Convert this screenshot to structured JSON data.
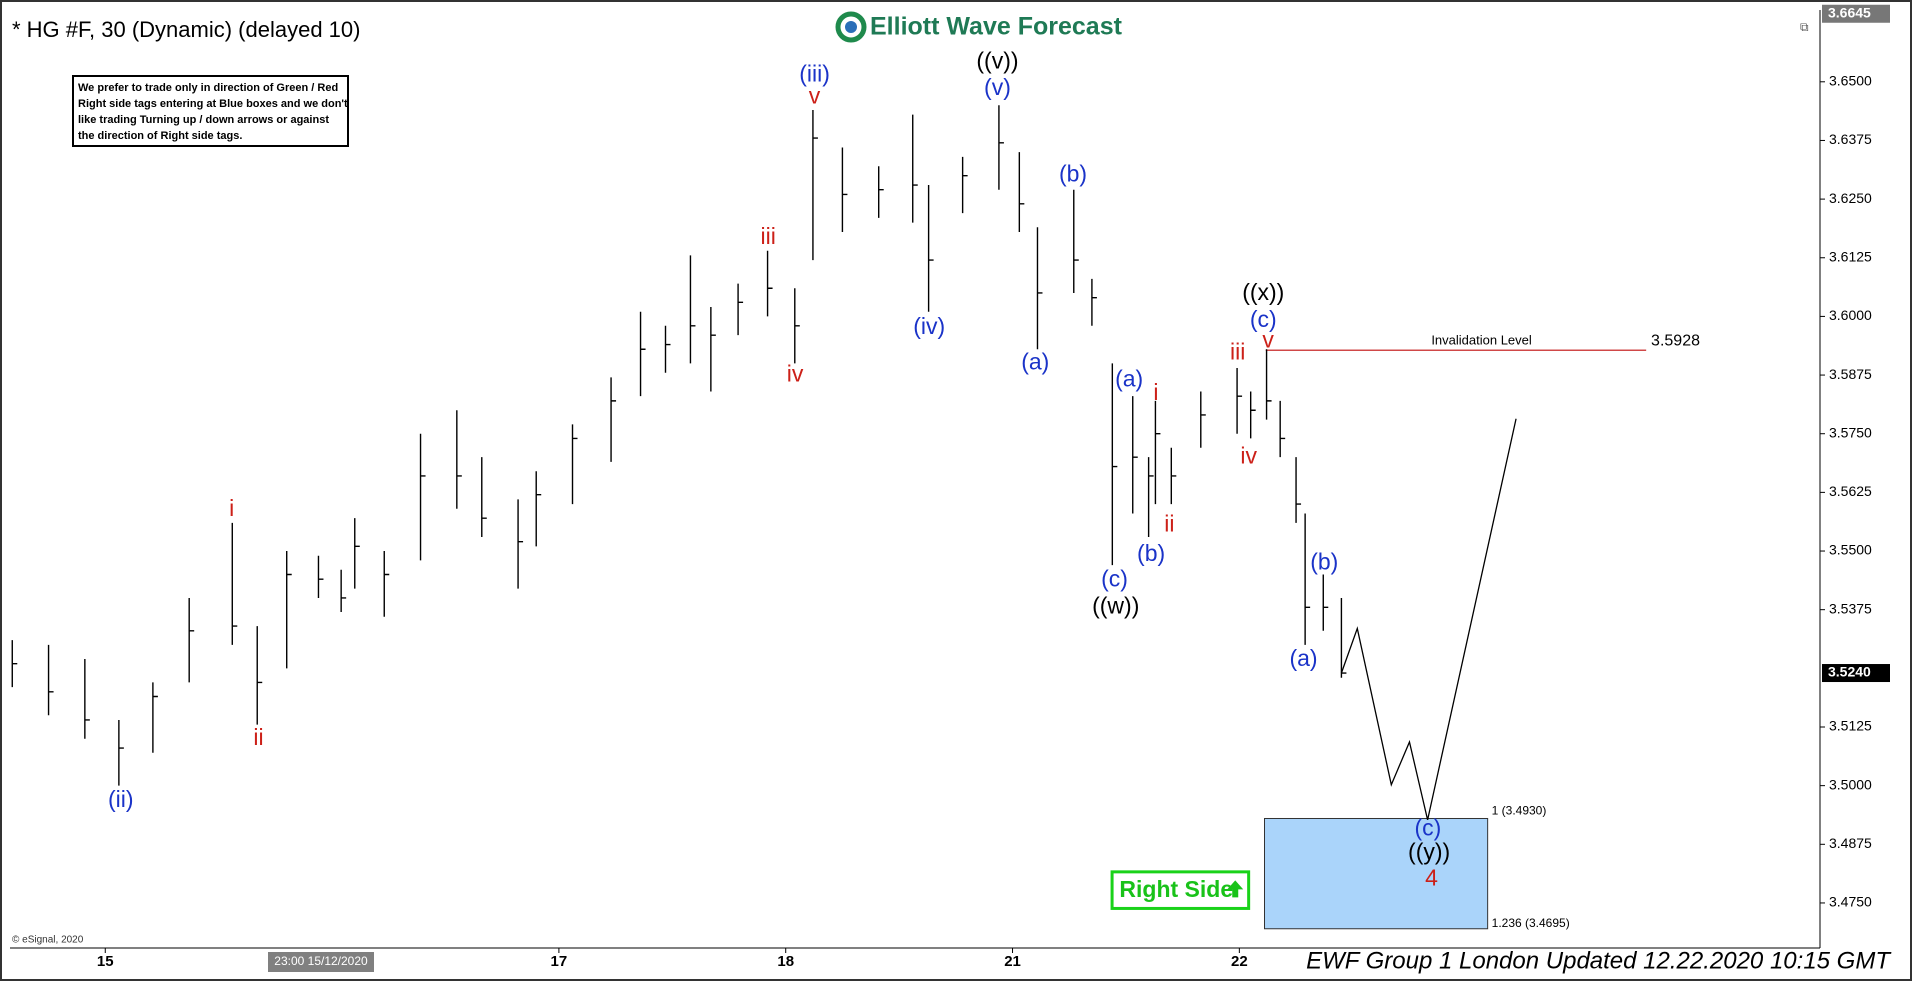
{
  "chart_data": {
    "type": "ohlc",
    "title": "* HG #F, 30 (Dynamic) (delayed 10)",
    "logo": "Elliott Wave Forecast",
    "note": [
      "We prefer to trade only in direction of Green / Red",
      "Right side tags entering at Blue boxes and we don't",
      "like trading Turning up / down arrows or against",
      "the direction of Right side tags."
    ],
    "color": "#000000",
    "x": [
      -0.41,
      -0.25,
      -0.09,
      0.06,
      0.21,
      0.37,
      0.56,
      0.67,
      0.8,
      0.94,
      1.04,
      1.1,
      1.23,
      1.39,
      1.55,
      1.66,
      1.82,
      1.9,
      2.06,
      2.23,
      2.36,
      2.47,
      2.58,
      2.67,
      2.79,
      2.92,
      3.04,
      3.12,
      3.25,
      3.41,
      3.56,
      3.63,
      3.78,
      3.94,
      4.03,
      4.11,
      4.27,
      4.35,
      4.44,
      4.53,
      4.6,
      4.63,
      4.7,
      4.83,
      4.99,
      5.05,
      5.12,
      5.18,
      5.25,
      5.29,
      5.37,
      5.45
    ],
    "high": [
      3.531,
      3.53,
      3.527,
      3.514,
      3.522,
      3.54,
      3.556,
      3.534,
      3.55,
      3.549,
      3.546,
      3.557,
      3.55,
      3.575,
      3.58,
      3.57,
      3.561,
      3.567,
      3.577,
      3.587,
      3.601,
      3.598,
      3.613,
      3.602,
      3.607,
      3.614,
      3.606,
      3.644,
      3.636,
      3.632,
      3.643,
      3.628,
      3.634,
      3.645,
      3.635,
      3.619,
      3.627,
      3.608,
      3.59,
      3.583,
      3.57,
      3.582,
      3.572,
      3.584,
      3.589,
      3.584,
      3.593,
      3.582,
      3.57,
      3.558,
      3.545,
      3.54
    ],
    "low": [
      3.521,
      3.515,
      3.51,
      3.5,
      3.507,
      3.522,
      3.53,
      3.513,
      3.525,
      3.54,
      3.537,
      3.542,
      3.536,
      3.548,
      3.559,
      3.553,
      3.542,
      3.551,
      3.56,
      3.569,
      3.583,
      3.588,
      3.59,
      3.584,
      3.596,
      3.6,
      3.59,
      3.612,
      3.618,
      3.621,
      3.62,
      3.601,
      3.622,
      3.627,
      3.618,
      3.593,
      3.605,
      3.598,
      3.547,
      3.558,
      3.553,
      3.56,
      3.56,
      3.572,
      3.575,
      3.574,
      3.578,
      3.57,
      3.556,
      3.53,
      3.533,
      3.523
    ],
    "close": [
      3.526,
      3.52,
      3.514,
      3.508,
      3.519,
      3.533,
      3.534,
      3.522,
      3.545,
      3.544,
      3.54,
      3.551,
      3.545,
      3.566,
      3.566,
      3.557,
      3.552,
      3.562,
      3.574,
      3.582,
      3.593,
      3.594,
      3.598,
      3.596,
      3.603,
      3.606,
      3.598,
      3.638,
      3.626,
      3.627,
      3.628,
      3.612,
      3.63,
      3.637,
      3.624,
      3.605,
      3.612,
      3.604,
      3.568,
      3.57,
      3.566,
      3.575,
      3.566,
      3.579,
      3.583,
      3.58,
      3.582,
      3.574,
      3.56,
      3.538,
      3.538,
      3.524
    ],
    "projection": {
      "x": [
        5.45,
        5.52,
        5.67,
        5.75,
        5.83,
        6.22
      ],
      "values": [
        3.524,
        3.5335,
        3.5002,
        3.5093,
        3.4927,
        3.5782
      ],
      "color": "#000000"
    },
    "xlim": [
      -0.42,
      7.56
    ],
    "xticks": [
      {
        "value": 0,
        "label": "15"
      },
      {
        "value": 2,
        "label": "17"
      },
      {
        "value": 3,
        "label": "18"
      },
      {
        "value": 4,
        "label": "21"
      },
      {
        "value": 5,
        "label": "22"
      }
    ],
    "time_tag": "23:00 15/12/2020",
    "ylim": [
      3.4654,
      3.6653
    ],
    "yticks": [
      {
        "value": 3.65,
        "label": "3.6500"
      },
      {
        "value": 3.6375,
        "label": "3.6375"
      },
      {
        "value": 3.625,
        "label": "3.6250"
      },
      {
        "value": 3.6125,
        "label": "3.6125"
      },
      {
        "value": 3.6,
        "label": "3.6000"
      },
      {
        "value": 3.5875,
        "label": "3.5875"
      },
      {
        "value": 3.575,
        "label": "3.5750"
      },
      {
        "value": 3.5625,
        "label": "3.5625"
      },
      {
        "value": 3.55,
        "label": "3.5500"
      },
      {
        "value": 3.5375,
        "label": "3.5375"
      },
      {
        "value": 3.5125,
        "label": "3.5125"
      },
      {
        "value": 3.5,
        "label": "3.5000"
      },
      {
        "value": 3.4875,
        "label": "3.4875"
      },
      {
        "value": 3.475,
        "label": "3.4750"
      }
    ],
    "last_price": {
      "value": 3.524,
      "label": "3.5240"
    },
    "high_price": {
      "value": 3.6645,
      "label": "3.6645"
    },
    "invalidation": {
      "label": "Invalidation Level",
      "value": 3.5928,
      "value_label": "3.5928",
      "color": "#d04848"
    },
    "target_box": {
      "upper": 3.493,
      "lower": 3.4695,
      "upper_label": "1 (3.4930)",
      "lower_label": "1.236 (3.4695)",
      "color": "#aad4fa"
    },
    "right_side": "Right Side",
    "wave_labels": [
      {
        "text": "(ii)",
        "color": "#1a33c8"
      },
      {
        "text": "i",
        "color": "#cc2018"
      },
      {
        "text": "ii",
        "color": "#cc2018"
      },
      {
        "text": "iii",
        "color": "#cc2018"
      },
      {
        "text": "iv",
        "color": "#cc2018"
      },
      {
        "text": "(iii)",
        "color": "#1a33c8"
      },
      {
        "text": "v",
        "color": "#cc2018"
      },
      {
        "text": "(iv)",
        "color": "#1a33c8"
      },
      {
        "text": "((v))",
        "color": "#000000"
      },
      {
        "text": "(v)",
        "color": "#1a33c8"
      },
      {
        "text": "(a)",
        "color": "#1a33c8"
      },
      {
        "text": "(b)",
        "color": "#1a33c8"
      },
      {
        "text": "(c)",
        "color": "#1a33c8"
      },
      {
        "text": "((w))",
        "color": "#000000"
      },
      {
        "text": "(a)",
        "color": "#1a33c8"
      },
      {
        "text": "(b)",
        "color": "#1a33c8"
      },
      {
        "text": "i",
        "color": "#cc2018"
      },
      {
        "text": "ii",
        "color": "#cc2018"
      },
      {
        "text": "iii",
        "color": "#cc2018"
      },
      {
        "text": "iv",
        "color": "#cc2018"
      },
      {
        "text": "((x))",
        "color": "#000000"
      },
      {
        "text": "(c)",
        "color": "#1a33c8"
      },
      {
        "text": "v",
        "color": "#cc2018"
      },
      {
        "text": "(a)",
        "color": "#1a33c8"
      },
      {
        "text": "(b)",
        "color": "#1a33c8"
      },
      {
        "text": "(c)",
        "color": "#1a33c8"
      },
      {
        "text": "((y))",
        "color": "#000000"
      },
      {
        "text": "4",
        "color": "#cc2018"
      }
    ],
    "copyright": "© eSignal, 2020",
    "footer": "EWF Group 1 London Updated 12.22.2020 10:15 GMT"
  }
}
